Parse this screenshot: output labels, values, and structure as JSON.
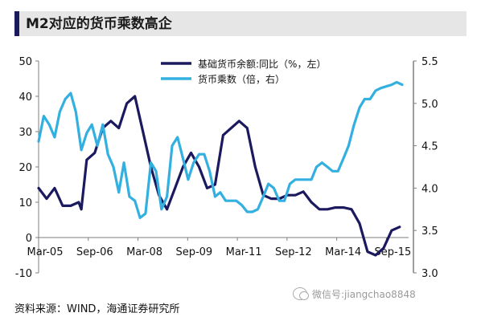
{
  "title": "M2对应的货币乘数高企",
  "source": "资料来源：WIND，海通证券研究所",
  "watermark": "微信号:jiangchao8848",
  "colors": {
    "series_dark": "#1c1a5e",
    "series_light": "#33b0e0",
    "axis": "#7f7f7f"
  },
  "chart_data": {
    "type": "line",
    "x_ticks": [
      "Mar-05",
      "Sep-06",
      "Mar-08",
      "Sep-09",
      "Mar-11",
      "Sep-12",
      "Mar-14",
      "Sep-15"
    ],
    "y_left": {
      "ticks": [
        "50",
        "40",
        "30",
        "20",
        "10",
        "0",
        "-10"
      ],
      "lim": [
        -10,
        50
      ]
    },
    "y_right": {
      "ticks": [
        "5.5",
        "5.0",
        "4.5",
        "4.0",
        "3.5",
        "3.0"
      ],
      "lim": [
        3.0,
        5.5
      ]
    },
    "legend_position": "top-center",
    "series": [
      {
        "name": "基础货币余额:同比（%，左）",
        "axis": "left",
        "color": "#1c1a5e",
        "x": [
          2005.17,
          2005.42,
          2005.67,
          2005.92,
          2006.17,
          2006.42,
          2006.5,
          2006.67,
          2006.92,
          2007.17,
          2007.42,
          2007.67,
          2007.92,
          2008.17,
          2008.42,
          2008.67,
          2008.92,
          2009.17,
          2009.42,
          2009.67,
          2009.92,
          2010.17,
          2010.42,
          2010.67,
          2010.92,
          2011.17,
          2011.42,
          2011.67,
          2011.92,
          2012.17,
          2012.42,
          2012.67,
          2012.92,
          2013.17,
          2013.42,
          2013.67,
          2013.92,
          2014.17,
          2014.42,
          2014.67,
          2014.92,
          2015.17,
          2015.42,
          2015.67,
          2015.92,
          2016.17,
          2016.42
        ],
        "y": [
          14,
          11,
          14,
          9,
          9,
          10,
          8,
          22,
          24,
          31,
          33,
          31,
          38,
          40,
          30,
          20,
          12,
          8,
          14,
          20,
          24,
          20,
          14,
          15,
          29,
          31,
          33,
          31,
          20,
          12,
          11,
          11,
          12,
          12,
          13,
          10,
          8,
          8,
          8.5,
          8.5,
          8,
          4,
          -4,
          -5,
          -3,
          2,
          3
        ]
      },
      {
        "name": "货币乘数（倍，右）",
        "axis": "right",
        "color": "#33b0e0",
        "x": [
          2005.17,
          2005.33,
          2005.5,
          2005.67,
          2005.83,
          2006.0,
          2006.17,
          2006.33,
          2006.5,
          2006.67,
          2006.83,
          2007.0,
          2007.17,
          2007.33,
          2007.5,
          2007.67,
          2007.83,
          2008.0,
          2008.17,
          2008.33,
          2008.5,
          2008.67,
          2008.83,
          2009.0,
          2009.17,
          2009.33,
          2009.5,
          2009.67,
          2009.83,
          2010.0,
          2010.17,
          2010.33,
          2010.5,
          2010.67,
          2010.83,
          2011.0,
          2011.17,
          2011.33,
          2011.5,
          2011.67,
          2011.83,
          2012.0,
          2012.17,
          2012.33,
          2012.5,
          2012.67,
          2012.83,
          2013.0,
          2013.17,
          2013.33,
          2013.5,
          2013.67,
          2013.83,
          2014.0,
          2014.17,
          2014.33,
          2014.5,
          2014.67,
          2014.83,
          2015.0,
          2015.17,
          2015.33,
          2015.5,
          2015.67,
          2015.83,
          2016.0,
          2016.17,
          2016.33,
          2016.5
        ],
        "y": [
          4.55,
          4.85,
          4.75,
          4.6,
          4.9,
          5.05,
          5.12,
          4.9,
          4.45,
          4.65,
          4.75,
          4.5,
          4.75,
          4.4,
          4.25,
          3.95,
          4.3,
          3.9,
          3.85,
          3.65,
          3.7,
          4.3,
          4.2,
          3.75,
          3.9,
          4.5,
          4.6,
          4.35,
          4.1,
          4.3,
          4.4,
          4.4,
          4.2,
          3.9,
          3.95,
          3.85,
          3.85,
          3.85,
          3.8,
          3.72,
          3.72,
          3.75,
          3.9,
          4.05,
          4.0,
          3.85,
          3.85,
          4.05,
          4.1,
          4.1,
          4.1,
          4.1,
          4.25,
          4.3,
          4.25,
          4.2,
          4.2,
          4.35,
          4.5,
          4.75,
          4.95,
          5.05,
          5.05,
          5.15,
          5.18,
          5.2,
          5.22,
          5.25,
          5.22
        ]
      }
    ]
  }
}
